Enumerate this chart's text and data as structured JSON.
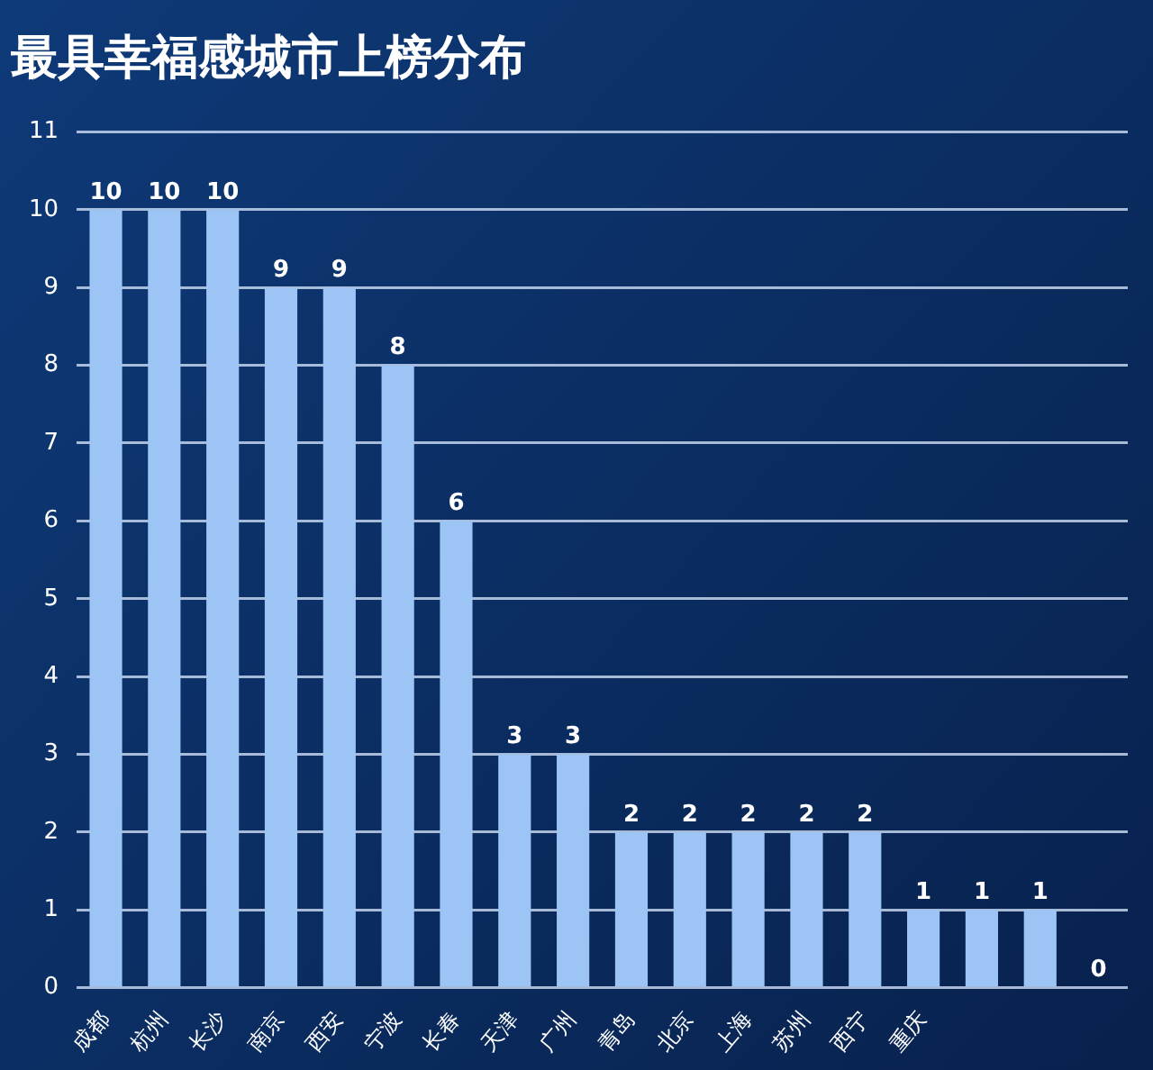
{
  "chart_data": {
    "type": "bar",
    "title": "最具幸福感城市上榜分布",
    "categories": [
      "成都",
      "杭州",
      "长沙",
      "南京",
      "西安",
      "宁波",
      "长春",
      "天津",
      "广州",
      "青岛",
      "北京",
      "上海",
      "苏州",
      "西宁",
      "重庆",
      null,
      null,
      null
    ],
    "values": [
      10,
      10,
      10,
      9,
      9,
      8,
      6,
      3,
      3,
      2,
      2,
      2,
      2,
      2,
      1,
      1,
      1,
      0
    ],
    "color": "#9cc4f5",
    "ylim": [
      0,
      11
    ],
    "yticks": [
      0,
      1,
      2,
      3,
      4,
      5,
      6,
      7,
      8,
      9,
      10,
      11
    ],
    "grid": "y",
    "legend": false,
    "data_labels": true
  }
}
